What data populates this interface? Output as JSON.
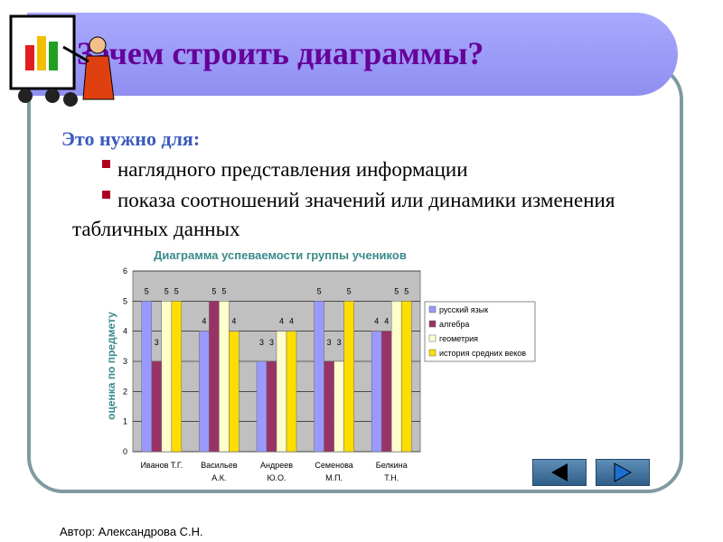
{
  "slide": {
    "title": "Зачем строить диаграммы?",
    "intro": "Это нужно для:",
    "bullets": [
      "наглядного представления информации",
      "показа соотношений значений или динамики изменения табличных данных"
    ],
    "author": "Автор: Александрова С.Н."
  },
  "chart_data": {
    "type": "bar",
    "title": "Диаграмма успеваемости группы учеников",
    "y_label": "оценка по предмету",
    "categories": [
      [
        "Иванов Т.Г."
      ],
      [
        "Васильев",
        "А.К."
      ],
      [
        "Андреев",
        "Ю.О."
      ],
      [
        "Семенова",
        "М.П."
      ],
      [
        "Белкина",
        "Т.Н."
      ]
    ],
    "series": [
      {
        "name": "русский язык",
        "color": "#9999ff",
        "values": [
          5,
          4,
          3,
          5,
          4
        ]
      },
      {
        "name": "алгебра",
        "color": "#993366",
        "values": [
          3,
          5,
          3,
          3,
          4
        ]
      },
      {
        "name": "геометрия",
        "color": "#ffffcc",
        "values": [
          5,
          5,
          4,
          3,
          5
        ]
      },
      {
        "name": "история средних веков",
        "color": "#ffdd00",
        "values": [
          5,
          4,
          4,
          5,
          5
        ]
      }
    ],
    "ylim": [
      0,
      6
    ],
    "yticks": [
      0,
      1,
      2,
      3,
      4,
      5,
      6
    ],
    "grid": true,
    "data_labels": true,
    "legend": "right"
  }
}
